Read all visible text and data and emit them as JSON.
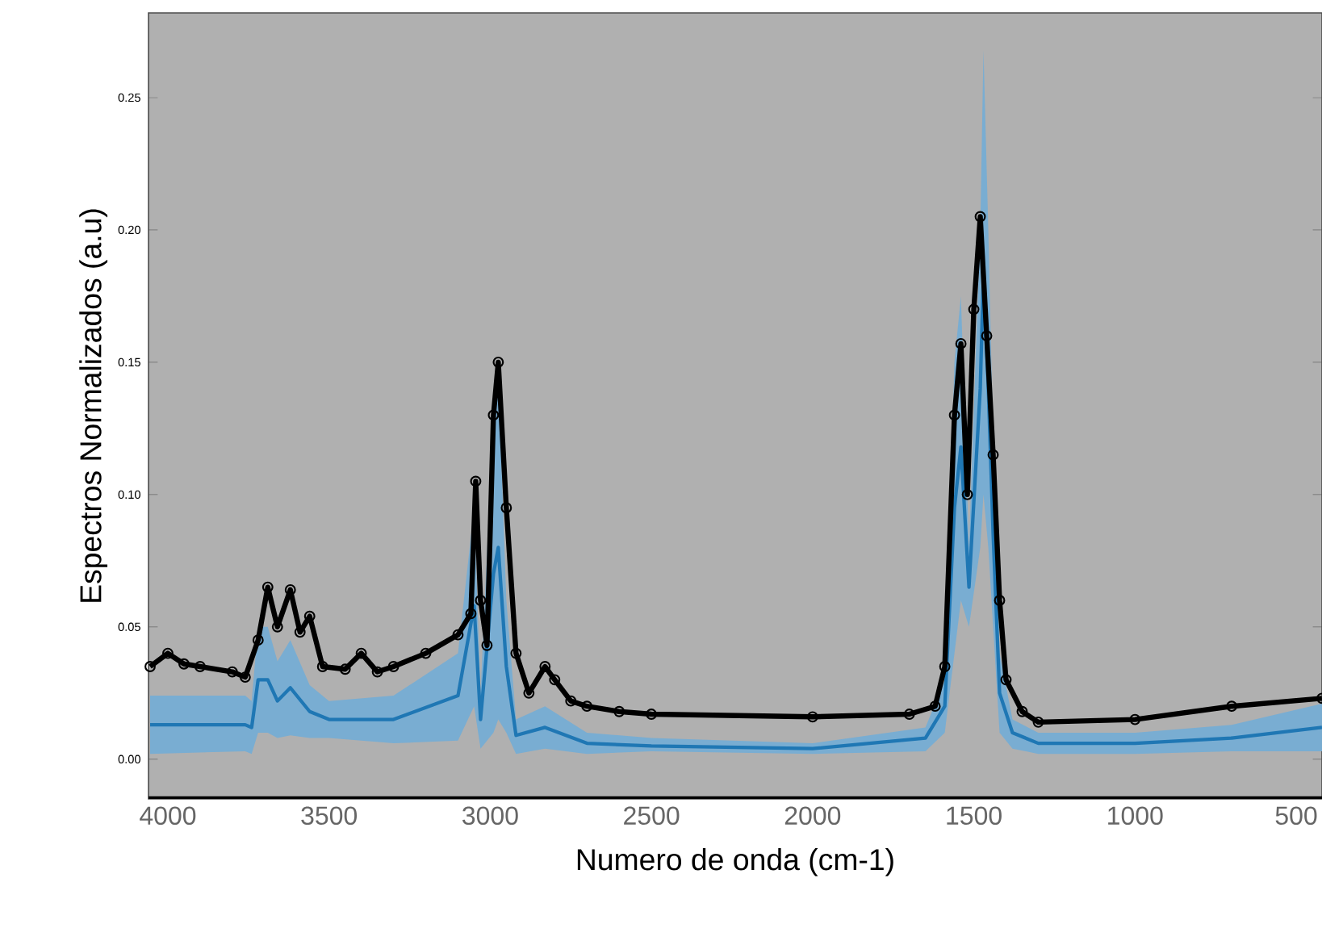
{
  "chart_data": {
    "type": "line",
    "xlabel": "Numero de onda (cm-1)",
    "ylabel": "Espectros Normalizados (a.u)",
    "xlim": [
      4060,
      420
    ],
    "ylim": [
      -0.015,
      0.282
    ],
    "xticks": [
      4000,
      3500,
      3000,
      2500,
      2000,
      1500,
      1000,
      500
    ],
    "yticks": [
      {
        "value": 0,
        "label": "0.00"
      },
      0.05,
      {
        "value": 0.1,
        "label": "0.10"
      },
      0.15,
      {
        "value": 0.2,
        "label": "0.20"
      },
      0.25
    ],
    "grid": false,
    "series": [
      {
        "color": "#1f77b4",
        "x": [
          4055,
          3760,
          3740,
          3720,
          3690,
          3660,
          3620,
          3560,
          3500,
          3300,
          3100,
          3050,
          3030,
          2990,
          2975,
          2950,
          2920,
          2830,
          2700,
          2500,
          2000,
          1650,
          1590,
          1560,
          1540,
          1515,
          1480,
          1470,
          1455,
          1440,
          1420,
          1380,
          1300,
          1000,
          700,
          420
        ],
        "values": [
          0.013,
          0.013,
          0.012,
          0.03,
          0.03,
          0.022,
          0.027,
          0.018,
          0.015,
          0.015,
          0.024,
          0.058,
          0.015,
          0.07,
          0.08,
          0.035,
          0.009,
          0.012,
          0.006,
          0.005,
          0.004,
          0.008,
          0.02,
          0.095,
          0.118,
          0.065,
          0.14,
          0.184,
          0.14,
          0.085,
          0.025,
          0.01,
          0.006,
          0.006,
          0.008,
          0.012
        ],
        "lower": [
          0.002,
          0.003,
          0.002,
          0.01,
          0.01,
          0.008,
          0.009,
          0.008,
          0.008,
          0.006,
          0.007,
          0.02,
          0.004,
          0.01,
          0.015,
          0.01,
          0.002,
          0.004,
          0.002,
          0.003,
          0.002,
          0.003,
          0.01,
          0.04,
          0.06,
          0.05,
          0.08,
          0.1,
          0.08,
          0.05,
          0.01,
          0.004,
          0.002,
          0.002,
          0.003,
          0.003
        ],
        "upper": [
          0.024,
          0.024,
          0.022,
          0.05,
          0.05,
          0.037,
          0.045,
          0.028,
          0.022,
          0.024,
          0.04,
          0.095,
          0.025,
          0.13,
          0.145,
          0.06,
          0.015,
          0.02,
          0.01,
          0.008,
          0.006,
          0.012,
          0.03,
          0.15,
          0.175,
          0.08,
          0.2,
          0.268,
          0.2,
          0.12,
          0.04,
          0.015,
          0.01,
          0.01,
          0.013,
          0.021
        ]
      },
      {
        "color": "#000000",
        "marker": "circle",
        "x": [
          4055,
          4000,
          3950,
          3900,
          3800,
          3760,
          3720,
          3690,
          3660,
          3620,
          3590,
          3560,
          3520,
          3450,
          3400,
          3350,
          3300,
          3200,
          3100,
          3060,
          3045,
          3030,
          3010,
          2990,
          2975,
          2950,
          2920,
          2880,
          2830,
          2800,
          2750,
          2700,
          2600,
          2500,
          2000,
          1700,
          1620,
          1590,
          1560,
          1540,
          1520,
          1500,
          1480,
          1460,
          1440,
          1420,
          1400,
          1350,
          1300,
          1000,
          700,
          420
        ],
        "values": [
          0.035,
          0.04,
          0.036,
          0.035,
          0.033,
          0.031,
          0.045,
          0.065,
          0.05,
          0.064,
          0.048,
          0.054,
          0.035,
          0.034,
          0.04,
          0.033,
          0.035,
          0.04,
          0.047,
          0.055,
          0.105,
          0.06,
          0.043,
          0.13,
          0.15,
          0.095,
          0.04,
          0.025,
          0.035,
          0.03,
          0.022,
          0.02,
          0.018,
          0.017,
          0.016,
          0.017,
          0.02,
          0.035,
          0.13,
          0.157,
          0.1,
          0.17,
          0.205,
          0.16,
          0.115,
          0.06,
          0.03,
          0.018,
          0.014,
          0.015,
          0.02,
          0.023
        ]
      }
    ]
  }
}
